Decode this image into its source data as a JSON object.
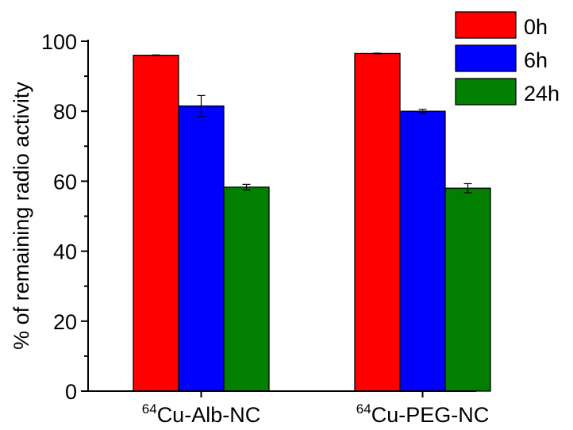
{
  "chart_data": {
    "type": "bar",
    "title": "",
    "ylabel": "% of remaining radio activity",
    "xlabel": "",
    "ylim": [
      0,
      100
    ],
    "yticks": [
      0,
      20,
      40,
      60,
      80,
      100
    ],
    "grid": false,
    "legend_position": "top-right",
    "categories": [
      {
        "sup": "64",
        "label": "Cu-Alb-NC"
      },
      {
        "sup": "64",
        "label": "Cu-PEG-NC"
      }
    ],
    "series": [
      {
        "name": "0h",
        "color": "#ff0000",
        "values": [
          96.0,
          96.5
        ],
        "errors": [
          0.1,
          0.1
        ]
      },
      {
        "name": "6h",
        "color": "#0000ff",
        "values": [
          81.5,
          80.0
        ],
        "errors": [
          3.0,
          0.5
        ]
      },
      {
        "name": "24h",
        "color": "#007f00",
        "values": [
          58.3,
          58.0
        ],
        "errors": [
          0.8,
          1.3
        ]
      }
    ]
  }
}
